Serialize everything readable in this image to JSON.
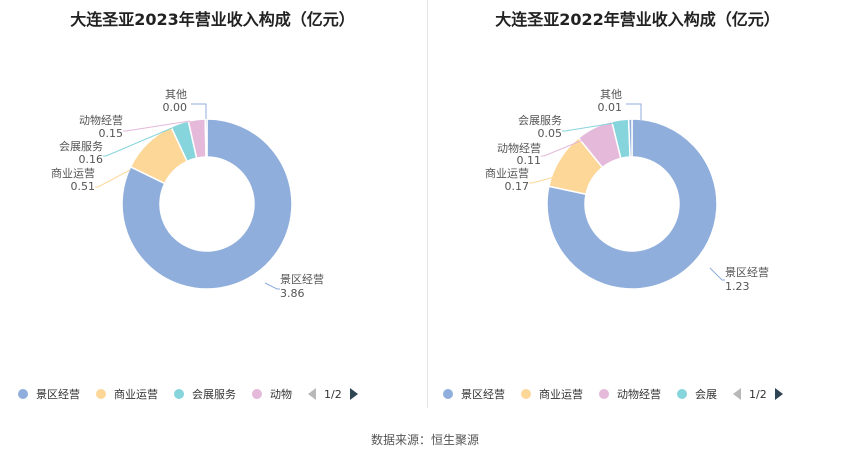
{
  "source_label": "数据来源：恒生聚源",
  "colors": [
    "#8faedc",
    "#fcd797",
    "#86d4dc",
    "#e4b9da",
    "#8faedc"
  ],
  "chart_data": [
    {
      "type": "pie",
      "title": "大连圣亚2023年营业收入构成（亿元）",
      "slices": [
        {
          "label": "景区经营",
          "value": 3.86,
          "value_text": "3.86",
          "color": "#8faedc"
        },
        {
          "label": "商业运营",
          "value": 0.51,
          "value_text": "0.51",
          "color": "#fcd797"
        },
        {
          "label": "会展服务",
          "value": 0.16,
          "value_text": "0.16",
          "color": "#86d4dc"
        },
        {
          "label": "动物经营",
          "value": 0.15,
          "value_text": "0.15",
          "color": "#e4b9da"
        },
        {
          "label": "其他",
          "value": 0.0,
          "value_text": "0.00",
          "color": "#8faedc"
        }
      ],
      "legend": {
        "items": [
          "景区经营",
          "商业运营",
          "会展服务",
          "动物"
        ],
        "page": "1/2"
      }
    },
    {
      "type": "pie",
      "title": "大连圣亚2022年营业收入构成（亿元）",
      "slices": [
        {
          "label": "景区经营",
          "value": 1.23,
          "value_text": "1.23",
          "color": "#8faedc"
        },
        {
          "label": "商业运营",
          "value": 0.17,
          "value_text": "0.17",
          "color": "#fcd797"
        },
        {
          "label": "动物经营",
          "value": 0.11,
          "value_text": "0.11",
          "color": "#e4b9da"
        },
        {
          "label": "会展服务",
          "value": 0.05,
          "value_text": "0.05",
          "color": "#86d4dc"
        },
        {
          "label": "其他",
          "value": 0.01,
          "value_text": "0.01",
          "color": "#8faedc"
        }
      ],
      "legend": {
        "items": [
          "景区经营",
          "商业运营",
          "动物经营",
          "会展"
        ],
        "page": "1/2"
      }
    }
  ]
}
